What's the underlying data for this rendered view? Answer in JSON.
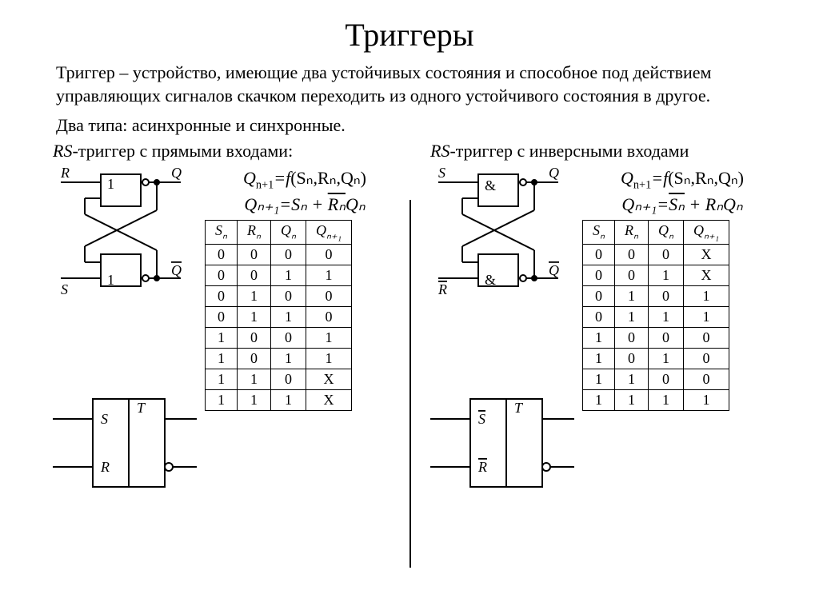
{
  "title": "Триггеры",
  "definition": "Триггер – устройство, имеющие два устойчивых состояния и способное под действием управляющих сигналов  скачком переходить из одного устойчивого состояния в другое.",
  "types_line": "Два типа: асинхронные и синхронные.",
  "left": {
    "heading_prefix": "RS",
    "heading": "-триггер с прямыми входами:",
    "eq1_lhs": "Q",
    "eq1_sub": "n+1",
    "eq1_mid": "=f",
    "eq1_args": "(Sₙ,Rₙ,Qₙ)",
    "eq2_full": "Qₙ₊₁=Sₙ + ",
    "eq2_bar": "Rₙ",
    "eq2_tail": "Qₙ",
    "gate_symbol": "1",
    "diagram_labels": {
      "R": "R",
      "S": "S",
      "Q": "Q",
      "Qbar": "Q",
      "T": "T"
    },
    "table": {
      "headers": [
        "Sₙ",
        "Rₙ",
        "Qₙ",
        "Qₙ₊₁"
      ],
      "rows": [
        [
          "0",
          "0",
          "0",
          "0"
        ],
        [
          "0",
          "0",
          "1",
          "1"
        ],
        [
          "0",
          "1",
          "0",
          "0"
        ],
        [
          "0",
          "1",
          "1",
          "0"
        ],
        [
          "1",
          "0",
          "0",
          "1"
        ],
        [
          "1",
          "0",
          "1",
          "1"
        ],
        [
          "1",
          "1",
          "0",
          "X"
        ],
        [
          "1",
          "1",
          "1",
          "X"
        ]
      ]
    }
  },
  "right": {
    "heading_prefix": "RS",
    "heading": "-триггер с инверсными входами",
    "eq1_lhs": "Q",
    "eq1_sub": "n+1",
    "eq1_mid": "=f",
    "eq1_args": "(Sₙ,Rₙ,Qₙ)",
    "eq2_pre": "Qₙ₊₁=",
    "eq2_bar": "Sₙ",
    "eq2_post": " + RₙQₙ",
    "gate_symbol": "&",
    "diagram_labels": {
      "R": "R",
      "S": "S",
      "Q": "Q",
      "Qbar": "Q",
      "T": "T"
    },
    "table": {
      "headers": [
        "Sₙ",
        "Rₙ",
        "Qₙ",
        "Qₙ₊₁"
      ],
      "rows": [
        [
          "0",
          "0",
          "0",
          "X"
        ],
        [
          "0",
          "0",
          "1",
          "X"
        ],
        [
          "0",
          "1",
          "0",
          "1"
        ],
        [
          "0",
          "1",
          "1",
          "1"
        ],
        [
          "1",
          "0",
          "0",
          "0"
        ],
        [
          "1",
          "0",
          "1",
          "0"
        ],
        [
          "1",
          "1",
          "0",
          "0"
        ],
        [
          "1",
          "1",
          "1",
          "1"
        ]
      ]
    }
  },
  "colors": {
    "stroke": "#000000",
    "bg": "#ffffff"
  }
}
